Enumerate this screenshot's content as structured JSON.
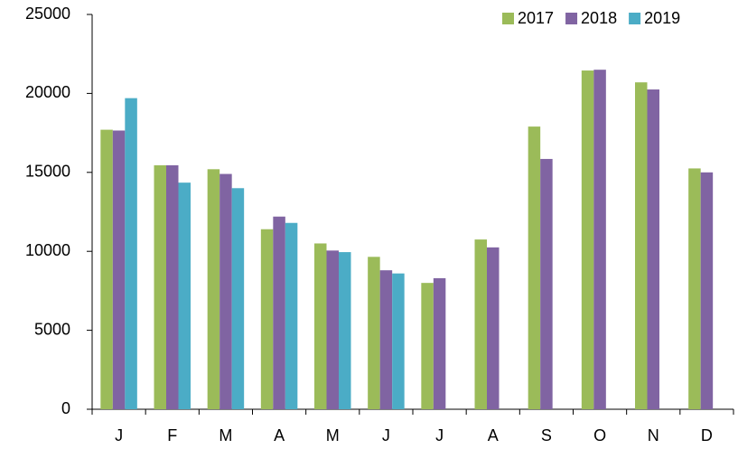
{
  "chart_data": {
    "type": "bar",
    "categories": [
      "J",
      "F",
      "M",
      "A",
      "M",
      "J",
      "J",
      "A",
      "S",
      "O",
      "N",
      "D"
    ],
    "series": [
      {
        "name": "2017",
        "color": "#9bbb59",
        "values": [
          17700,
          15450,
          15200,
          11400,
          10500,
          9650,
          8000,
          10750,
          17900,
          21450,
          20700,
          15250
        ]
      },
      {
        "name": "2018",
        "color": "#8064a2",
        "values": [
          17650,
          15450,
          14900,
          12200,
          10050,
          8800,
          8300,
          10250,
          15850,
          21500,
          20250,
          15000
        ]
      },
      {
        "name": "2019",
        "color": "#4bacc6",
        "values": [
          19700,
          14350,
          14000,
          11800,
          9950,
          8600,
          null,
          null,
          null,
          null,
          null,
          null
        ]
      }
    ],
    "ylim": [
      0,
      25000
    ],
    "yticks": [
      0,
      5000,
      10000,
      15000,
      20000,
      25000
    ],
    "legend": "top-right",
    "grid": false
  }
}
